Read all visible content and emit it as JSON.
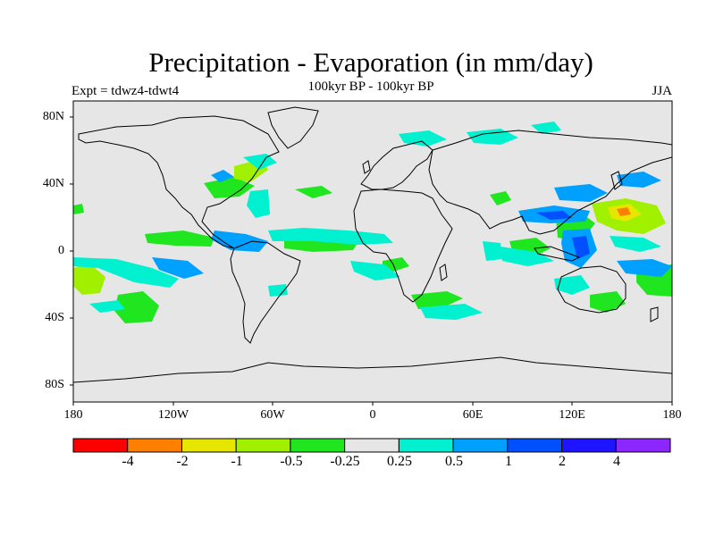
{
  "header": {
    "title": "Precipitation - Evaporation (in mm/day)",
    "subtitle": "100kyr BP - 100kyr BP",
    "left_label": "Expt = tdwz4-tdwt4",
    "right_label": "JJA"
  },
  "map": {
    "land_color": "#e6e6e6",
    "coast_color": "#000000",
    "lat_ticks": [
      "80N",
      "40N",
      "0",
      "40S",
      "80S"
    ],
    "lon_ticks": [
      "180",
      "120W",
      "60W",
      "0",
      "60E",
      "120E",
      "180"
    ]
  },
  "colorbar": {
    "colors": [
      "#ff0000",
      "#ff7f00",
      "#e6e600",
      "#a0f000",
      "#20e620",
      "#e6e6e6",
      "#00f0d0",
      "#00a0ff",
      "#0050ff",
      "#1e14ff",
      "#8c28ff"
    ],
    "labels": [
      "-4",
      "-2",
      "-1",
      "-0.5",
      "-0.25",
      "0.25",
      "0.5",
      "1",
      "2",
      "4"
    ]
  }
}
